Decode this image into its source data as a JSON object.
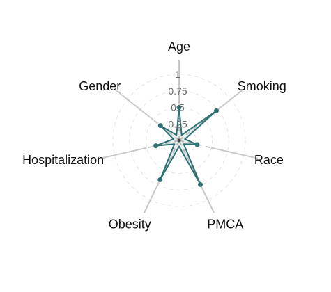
{
  "chart_data": {
    "type": "radar",
    "title": "",
    "categories": [
      "Age",
      "Smoking",
      "Race",
      "PMCA",
      "Obesity",
      "Hospitalization",
      "Gender"
    ],
    "series": [
      {
        "values": [
          0.5,
          0.72,
          0.28,
          0.74,
          0.66,
          0.36,
          0.36
        ],
        "color": "#2e7073"
      }
    ],
    "radial_ticks": [
      "0.25",
      "0.5",
      "0.75",
      "1"
    ],
    "radial_range": [
      0,
      1
    ],
    "grid": true
  },
  "colors": {
    "series": "#2e7073",
    "fill": "#2e7073",
    "grid_dashed": "#c8c8c8",
    "spoke": "#c8c8c8",
    "tick_label": "#6b6b6b",
    "label": "#111111"
  }
}
